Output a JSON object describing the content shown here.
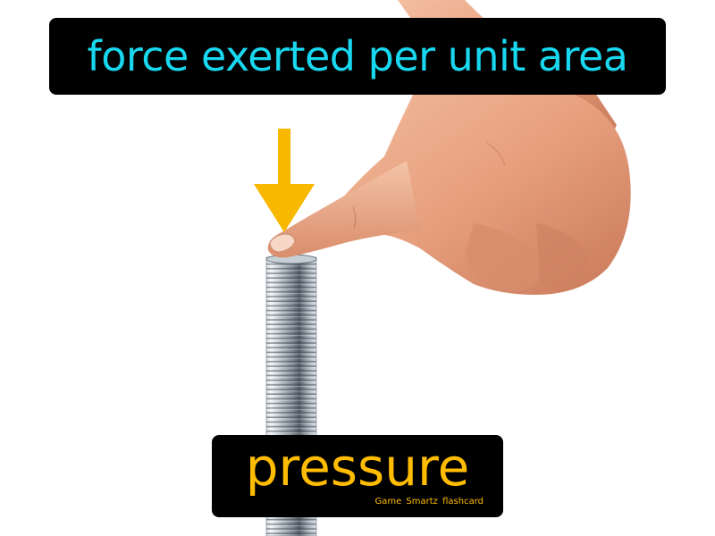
{
  "definition": {
    "text": "force exerted per unit area"
  },
  "term": {
    "text": "pressure",
    "brand": "Game Smartz flashcard"
  },
  "colors": {
    "definition_text": "#18d8f0",
    "term_text": "#ffbc00",
    "arrow": "#f8b800",
    "label_background": "#000000"
  },
  "icons": {
    "arrow": "down-arrow-icon",
    "spring": "metal-spring-icon",
    "hand": "pointing-hand-icon"
  }
}
